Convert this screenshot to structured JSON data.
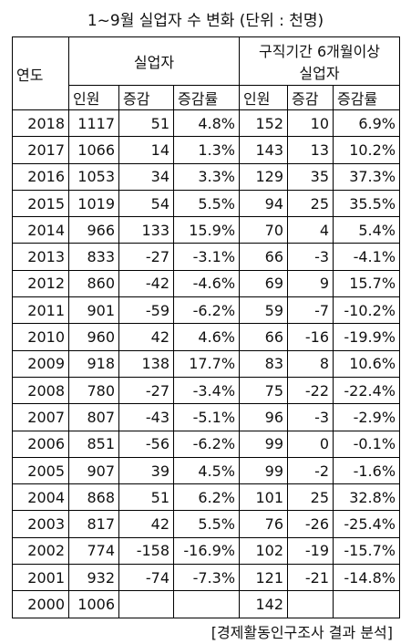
{
  "title": "1~9월 실업자 수 변화 (단위 : 천명)",
  "table": {
    "year_header": "연도",
    "groups": [
      {
        "lines": [
          "실업자"
        ]
      },
      {
        "lines": [
          "구직기간 6개월이상",
          "실업자"
        ]
      }
    ],
    "subheaders": [
      "인원",
      "증감",
      "증감률",
      "인원",
      "증감",
      "증감률"
    ],
    "rows": [
      [
        "2018",
        "1117",
        "51",
        "4.8%",
        "152",
        "10",
        "6.9%"
      ],
      [
        "2017",
        "1066",
        "14",
        "1.3%",
        "143",
        "13",
        "10.2%"
      ],
      [
        "2016",
        "1053",
        "34",
        "3.3%",
        "129",
        "35",
        "37.3%"
      ],
      [
        "2015",
        "1019",
        "54",
        "5.5%",
        "94",
        "25",
        "35.5%"
      ],
      [
        "2014",
        "966",
        "133",
        "15.9%",
        "70",
        "4",
        "5.4%"
      ],
      [
        "2013",
        "833",
        "-27",
        "-3.1%",
        "66",
        "-3",
        "-4.1%"
      ],
      [
        "2012",
        "860",
        "-42",
        "-4.6%",
        "69",
        "9",
        "15.7%"
      ],
      [
        "2011",
        "901",
        "-59",
        "-6.2%",
        "59",
        "-7",
        "-10.2%"
      ],
      [
        "2010",
        "960",
        "42",
        "4.6%",
        "66",
        "-16",
        "-19.9%"
      ],
      [
        "2009",
        "918",
        "138",
        "17.7%",
        "83",
        "8",
        "10.6%"
      ],
      [
        "2008",
        "780",
        "-27",
        "-3.4%",
        "75",
        "-22",
        "-22.4%"
      ],
      [
        "2007",
        "807",
        "-43",
        "-5.1%",
        "96",
        "-3",
        "-2.9%"
      ],
      [
        "2006",
        "851",
        "-56",
        "-6.2%",
        "99",
        "0",
        "-0.1%"
      ],
      [
        "2005",
        "907",
        "39",
        "4.5%",
        "99",
        "-2",
        "-1.6%"
      ],
      [
        "2004",
        "868",
        "51",
        "6.2%",
        "101",
        "25",
        "32.8%"
      ],
      [
        "2003",
        "817",
        "42",
        "5.5%",
        "76",
        "-26",
        "-25.4%"
      ],
      [
        "2002",
        "774",
        "-158",
        "-16.9%",
        "102",
        "-19",
        "-15.7%"
      ],
      [
        "2001",
        "932",
        "-74",
        "-7.3%",
        "121",
        "-21",
        "-14.8%"
      ],
      [
        "2000",
        "1006",
        null,
        null,
        "142",
        null,
        null
      ]
    ]
  },
  "source": "[경제활동인구조사 결과 분석]"
}
